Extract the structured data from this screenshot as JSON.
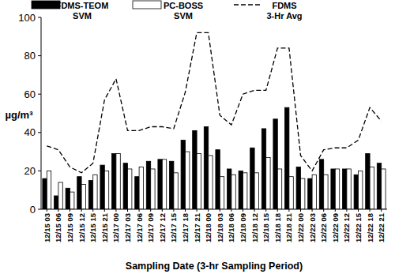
{
  "chart_data": {
    "type": "bar",
    "x_label": "Sampling Date (3-hr Sampling Period)",
    "y_label": "µg/m³",
    "categories": [
      "12/15 03",
      "12/15 06",
      "12/15 09",
      "12/15 12",
      "12/15 15",
      "12/15 21",
      "12/17 00",
      "12/17 03",
      "12/17 06",
      "12/17 09",
      "12/17 12",
      "12/17 15",
      "12/17 18",
      "12/17 21",
      "12/18 00",
      "12/18 03",
      "12/18 06",
      "12/18 09",
      "12/18 12",
      "12/18 15",
      "12/18 18",
      "12/18 21",
      "12/22 00",
      "12/22 03",
      "12/22 06",
      "12/22 09",
      "12/22 12",
      "12/22 15",
      "12/22 18",
      "12/22 21"
    ],
    "series": [
      {
        "name": "FDMS-TEOM SVM",
        "type": "bar",
        "color": "#000000",
        "values": [
          16,
          7,
          11,
          17,
          15,
          23,
          29,
          24,
          17,
          25,
          26,
          25,
          36,
          41,
          43,
          31,
          21,
          20,
          32,
          42,
          47,
          53,
          22,
          16,
          26,
          21,
          21,
          18,
          29,
          24
        ]
      },
      {
        "name": "PC-BOSS SVM",
        "type": "bar",
        "color": "#ffffff",
        "values": [
          20,
          14,
          9,
          13,
          18,
          20,
          29,
          21,
          22,
          21,
          26,
          19,
          30,
          29,
          28,
          17,
          18,
          19,
          19,
          27,
          21,
          17,
          16,
          18,
          18,
          21,
          21,
          20,
          22,
          21
        ]
      },
      {
        "name": "FDMS 3-Hr Avg",
        "type": "line",
        "color": "#000000",
        "line_style": "dashed",
        "values": [
          33,
          31,
          22,
          19,
          24,
          57,
          68,
          41,
          41,
          43,
          43,
          42,
          61,
          92,
          92,
          49,
          44,
          60,
          62,
          62,
          84,
          84,
          28,
          20,
          31,
          32,
          32,
          36,
          53,
          46
        ]
      }
    ],
    "ylim": [
      0,
      100
    ],
    "yticks": [
      0,
      20,
      40,
      60,
      80,
      100
    ],
    "grid": false,
    "legend": "top"
  }
}
